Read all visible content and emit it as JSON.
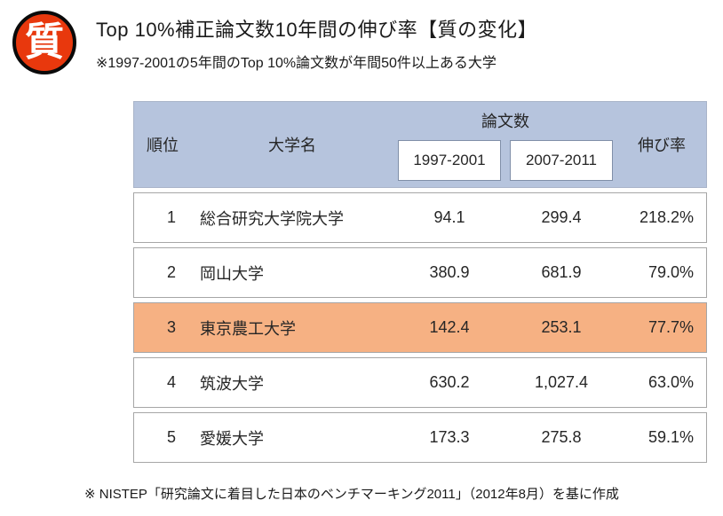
{
  "badge": {
    "label": "質",
    "color": "#e8380d"
  },
  "header": {
    "title": "Top 10%補正論文数10年間の伸び率【質の変化】",
    "subtitle": "※1997-2001の5年間のTop 10%論文数が年間50件以上ある大学"
  },
  "table": {
    "columns": {
      "rank": "順位",
      "university": "大学名",
      "papers_group": "論文数",
      "period1": "1997-2001",
      "period2": "2007-2011",
      "growth": "伸び率"
    },
    "rows": [
      {
        "rank": "1",
        "name": "総合研究大学院大学",
        "v1": "94.1",
        "v2": "299.4",
        "rate": "218.2%",
        "highlight": false
      },
      {
        "rank": "2",
        "name": "岡山大学",
        "v1": "380.9",
        "v2": "681.9",
        "rate": "79.0%",
        "highlight": false
      },
      {
        "rank": "3",
        "name": "東京農工大学",
        "v1": "142.4",
        "v2": "253.1",
        "rate": "77.7%",
        "highlight": true
      },
      {
        "rank": "4",
        "name": "筑波大学",
        "v1": "630.2",
        "v2": "1,027.4",
        "rate": "63.0%",
        "highlight": false
      },
      {
        "rank": "5",
        "name": "愛媛大学",
        "v1": "173.3",
        "v2": "275.8",
        "rate": "59.1%",
        "highlight": false
      }
    ],
    "colors": {
      "header_bg": "#b6c4dd",
      "highlight_bg": "#f6b183",
      "row_border": "#a6a6a6"
    }
  },
  "footer": {
    "note": "※ NISTEP「研究論文に着目した日本のベンチマーキング2011」（2012年8月）を基に作成"
  }
}
